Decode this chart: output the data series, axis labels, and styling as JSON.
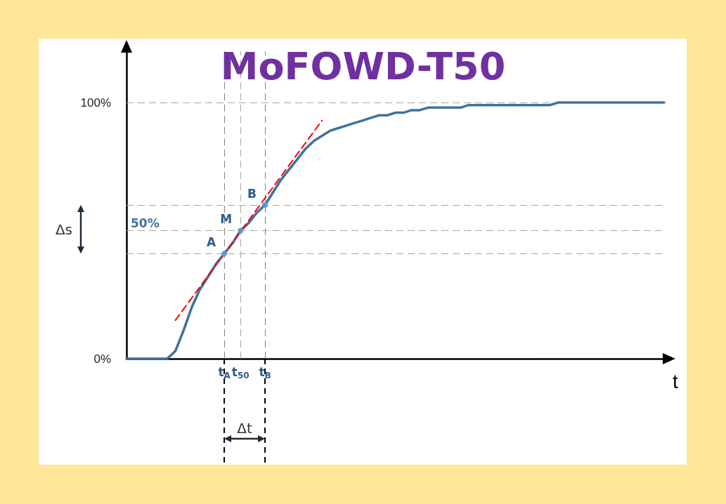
{
  "chart_data": {
    "type": "line",
    "title": "MoFOWD-T50",
    "xlabel": "t",
    "categories": [
      null,
      null,
      null,
      null,
      null,
      null,
      null,
      null,
      null,
      null,
      null,
      null,
      "t$_{A}$",
      null,
      "t$_{50}$",
      null,
      null,
      "t$_{B}$",
      null,
      null,
      null,
      null,
      null,
      null,
      null,
      null,
      null,
      null,
      null,
      null,
      null,
      null,
      null,
      null,
      null,
      null,
      null,
      null,
      null,
      null,
      null,
      null,
      null,
      null,
      null,
      null,
      null,
      null,
      null,
      null,
      null,
      null,
      null,
      null,
      null,
      null,
      null,
      null,
      null,
      null,
      null,
      null,
      null,
      null,
      null,
      null,
      null
    ],
    "series": [
      {
        "color": "#41719c",
        "values": [
          0,
          0,
          0,
          0,
          0,
          0,
          3,
          11,
          20,
          27,
          32,
          37,
          41,
          45,
          50,
          53,
          57,
          60,
          65,
          70,
          74,
          78,
          82,
          85,
          87,
          89,
          90,
          91,
          92,
          93,
          94,
          95,
          95,
          96,
          96,
          97,
          97,
          98,
          98,
          98,
          98,
          98,
          99,
          99,
          99,
          99,
          99,
          99,
          99,
          99,
          99,
          99,
          99,
          100,
          100,
          100,
          100,
          100,
          100,
          100,
          100,
          100,
          100,
          100,
          100,
          100,
          100
        ]
      },
      {
        "color": "#ff0000",
        "line_style": "dashed",
        "values": [
          null,
          null,
          null,
          null,
          null,
          null,
          15,
          null,
          null,
          null,
          null,
          null,
          null,
          null,
          null,
          null,
          null,
          null,
          null,
          null,
          null,
          null,
          null,
          null,
          93,
          null,
          null,
          null,
          null,
          null,
          null,
          null,
          null,
          null,
          null,
          null,
          null,
          null,
          null,
          null,
          null,
          null,
          null,
          null,
          null,
          null,
          null,
          null,
          null,
          null,
          null,
          null,
          null,
          null,
          null,
          null,
          null,
          null,
          null,
          null,
          null,
          null,
          null,
          null,
          null,
          null,
          null
        ]
      }
    ],
    "ylim": [
      0,
      120
    ],
    "yticks": [
      {
        "value": 0,
        "label": "0%"
      },
      {
        "value": 100,
        "label": "100%"
      }
    ],
    "marker": "none",
    "grid": false,
    "ref_lines": [
      {
        "axis": "y",
        "value": 100,
        "label": null,
        "color": "#a6a6a6",
        "line_style": "dashed"
      },
      {
        "axis": "y",
        "value": 60,
        "label": null,
        "color": "#a6a6a6",
        "line_style": "dashed"
      },
      {
        "axis": "y",
        "value": 50,
        "label": "50%",
        "color": "#a6a6a6",
        "line_style": "dashed"
      },
      {
        "axis": "y",
        "value": 41,
        "label": null,
        "color": "#a6a6a6",
        "line_style": "dashed"
      },
      {
        "axis": "x",
        "value": "t$_{A}$",
        "label": null,
        "color": "#7f7f7f",
        "line_style": "dashed"
      },
      {
        "axis": "x",
        "value": "t$_{50}$",
        "label": null,
        "color": "#a6a6a6",
        "line_style": "dashed"
      },
      {
        "axis": "x",
        "value": "t$_{B}$",
        "label": null,
        "color": "#7f7f7f",
        "line_style": "dashed"
      }
    ],
    "annotations": [
      {
        "text": "A",
        "x": "t$_{A}$",
        "y": 41
      },
      {
        "text": "M",
        "x": "t$_{50}$",
        "y": 50
      },
      {
        "text": "B",
        "x": "t$_{B}$",
        "y": 60
      },
      "Δs",
      "Δt"
    ]
  }
}
